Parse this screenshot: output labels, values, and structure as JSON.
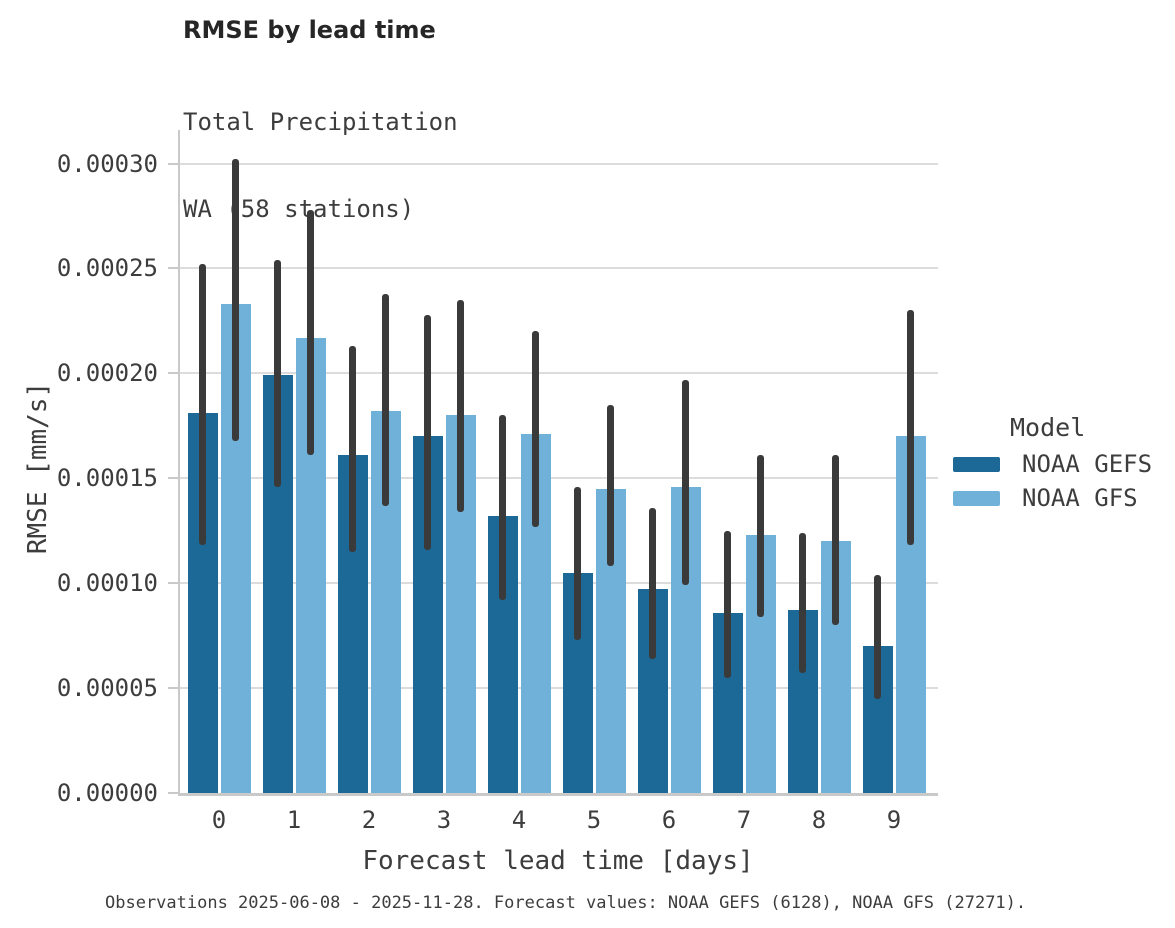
{
  "header": {
    "title": "RMSE by lead time",
    "subtitle_line1": "Total Precipitation",
    "subtitle_line2": "WA (58 stations)"
  },
  "chart_data": {
    "type": "bar",
    "title": "RMSE by lead time",
    "subtitle_lines": [
      "Total Precipitation",
      "WA (58 stations)"
    ],
    "xlabel": "Forecast lead time [days]",
    "ylabel": "RMSE [mm/s]",
    "categories": [
      "0",
      "1",
      "2",
      "3",
      "4",
      "5",
      "6",
      "7",
      "8",
      "9"
    ],
    "y_ticks": [
      0.0,
      5e-05,
      0.0001,
      0.00015,
      0.0002,
      0.00025,
      0.0003
    ],
    "y_tick_labels": [
      "0.00000",
      "0.00005",
      "0.00010",
      "0.00015",
      "0.00020",
      "0.00025",
      "0.00030"
    ],
    "ylim": [
      0,
      0.000316
    ],
    "grid": "horizontal",
    "grid_color": "#dcdcdc",
    "error_bar_color": "#3a3a3a",
    "legend": {
      "title": "Model",
      "position": "right"
    },
    "series": [
      {
        "name": "NOAA GEFS",
        "color": "#1c6998",
        "values": [
          0.000181,
          0.000199,
          0.000161,
          0.00017,
          0.000132,
          0.000105,
          9.7e-05,
          8.6e-05,
          8.7e-05,
          7e-05
        ],
        "error_low": [
          0.000118,
          0.000146,
          0.000115,
          0.000116,
          9.2e-05,
          7.3e-05,
          6.4e-05,
          5.5e-05,
          5.7e-05,
          4.5e-05
        ],
        "error_high": [
          0.000252,
          0.000254,
          0.000213,
          0.000228,
          0.00018,
          0.000146,
          0.000136,
          0.000125,
          0.000124,
          0.000104
        ]
      },
      {
        "name": "NOAA GFS",
        "color": "#6fb1d8",
        "values": [
          0.000233,
          0.000217,
          0.000182,
          0.00018,
          0.000171,
          0.000145,
          0.000146,
          0.000123,
          0.00012,
          0.00017
        ],
        "error_low": [
          0.000168,
          0.000161,
          0.000137,
          0.000134,
          0.000127,
          0.000108,
          9.9e-05,
          8.4e-05,
          8e-05,
          0.000118
        ],
        "error_high": [
          0.000302,
          0.000278,
          0.000238,
          0.000235,
          0.00022,
          0.000185,
          0.000197,
          0.000161,
          0.000161,
          0.00023
        ]
      }
    ]
  },
  "footer": {
    "note": "Observations 2025-06-08 - 2025-11-28. Forecast values: NOAA GEFS (6128), NOAA GFS (27271)."
  }
}
